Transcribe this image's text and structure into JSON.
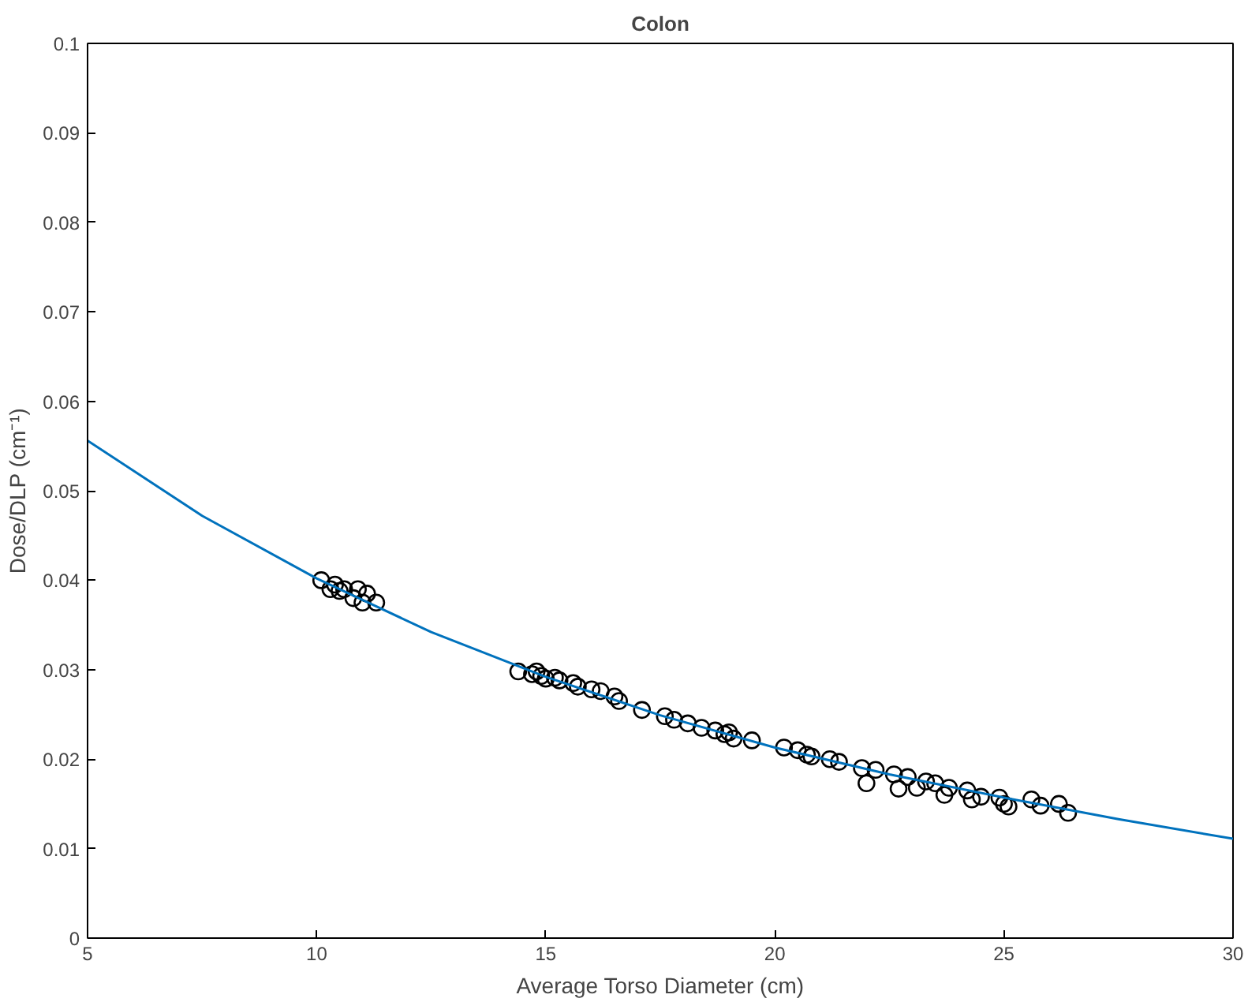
{
  "chart_data": {
    "type": "scatter",
    "title": "Colon",
    "xlabel": "Average Torso Diameter (cm)",
    "ylabel": "Dose/DLP (cm⁻¹)",
    "xlim": [
      5,
      30
    ],
    "ylim": [
      0,
      0.1
    ],
    "xticks": [
      5,
      10,
      15,
      20,
      25,
      30
    ],
    "yticks": [
      0,
      0.01,
      0.02,
      0.03,
      0.04,
      0.05,
      0.06,
      0.07,
      0.08,
      0.09,
      0.1
    ],
    "grid": false,
    "series": [
      {
        "marker": "circle",
        "color": "#000000",
        "x": [
          10.1,
          10.3,
          10.4,
          10.5,
          10.6,
          10.8,
          10.9,
          11.0,
          11.1,
          11.3,
          14.4,
          14.7,
          14.8,
          14.9,
          15.0,
          15.2,
          15.3,
          15.6,
          15.7,
          16.0,
          16.2,
          16.5,
          16.6,
          17.1,
          17.6,
          17.8,
          18.1,
          18.4,
          18.7,
          18.9,
          19.0,
          19.1,
          19.5,
          20.2,
          20.5,
          20.7,
          20.8,
          21.2,
          21.4,
          21.9,
          22.0,
          22.2,
          22.6,
          22.7,
          22.9,
          23.1,
          23.3,
          23.5,
          23.7,
          23.8,
          24.2,
          24.3,
          24.5,
          24.9,
          25.0,
          25.1,
          25.6,
          25.8,
          26.2,
          26.4
        ],
        "values": [
          0.04,
          0.039,
          0.0395,
          0.0388,
          0.039,
          0.038,
          0.039,
          0.0375,
          0.0385,
          0.0375,
          0.0298,
          0.0295,
          0.0298,
          0.0293,
          0.029,
          0.0291,
          0.0288,
          0.0285,
          0.0281,
          0.0278,
          0.0276,
          0.027,
          0.0265,
          0.0255,
          0.0248,
          0.0244,
          0.024,
          0.0235,
          0.0232,
          0.0228,
          0.023,
          0.0223,
          0.0221,
          0.0213,
          0.021,
          0.0205,
          0.0203,
          0.02,
          0.0197,
          0.019,
          0.0173,
          0.0188,
          0.0183,
          0.0167,
          0.018,
          0.0168,
          0.0175,
          0.0173,
          0.016,
          0.0168,
          0.0165,
          0.0155,
          0.0158,
          0.0157,
          0.015,
          0.0147,
          0.0155,
          0.0148,
          0.015,
          0.014
        ]
      },
      {
        "type": "line",
        "marker": "none",
        "color": "#0072bd",
        "x": [
          5,
          7.5,
          10,
          12.5,
          15,
          17.5,
          20,
          22.5,
          25,
          27.5,
          30
        ],
        "values": [
          0.0556,
          0.0472,
          0.0402,
          0.0342,
          0.0292,
          0.0249,
          0.0213,
          0.0183,
          0.0157,
          0.0133,
          0.0111
        ]
      }
    ]
  }
}
